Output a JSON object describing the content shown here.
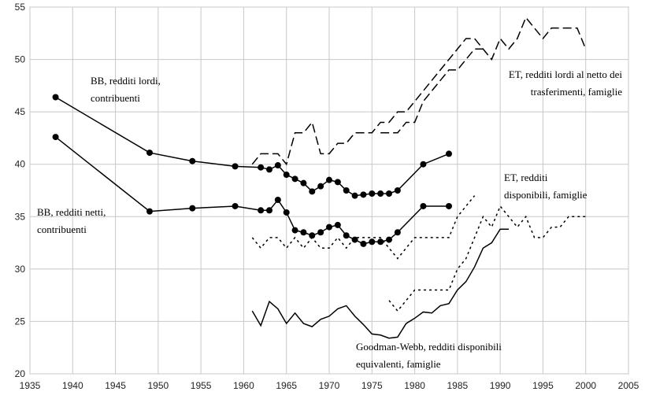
{
  "chart_data": {
    "type": "line",
    "xlim": [
      1935,
      2005
    ],
    "xticks": [
      1935,
      1940,
      1945,
      1950,
      1955,
      1960,
      1965,
      1970,
      1975,
      1980,
      1985,
      1990,
      1995,
      2000,
      2005
    ],
    "ylim": [
      20,
      55
    ],
    "yticks": [
      20,
      25,
      30,
      35,
      40,
      45,
      50,
      55
    ],
    "grid": true,
    "series": [
      {
        "name": [
          "BB, redditi lordi,",
          "contribuenti"
        ],
        "color": "#000000",
        "dash": "solid",
        "markers": true,
        "x": [
          1938,
          1949,
          1954,
          1959,
          1962,
          1963,
          1964,
          1965,
          1966,
          1967,
          1968,
          1969,
          1970,
          1971,
          1972,
          1973,
          1974,
          1975,
          1976,
          1977,
          1978,
          1981,
          1984
        ],
        "values": [
          46.4,
          41.1,
          40.3,
          39.8,
          39.7,
          39.5,
          39.9,
          39.0,
          38.6,
          38.2,
          37.4,
          37.9,
          38.5,
          38.3,
          37.5,
          37.0,
          37.1,
          37.2,
          37.2,
          37.2,
          37.5,
          40.0,
          41.0
        ]
      },
      {
        "name": [
          "BB, redditi netti,",
          "contribuenti"
        ],
        "color": "#000000",
        "dash": "solid",
        "markers": true,
        "x": [
          1938,
          1949,
          1954,
          1959,
          1962,
          1963,
          1964,
          1965,
          1966,
          1967,
          1968,
          1969,
          1970,
          1971,
          1972,
          1973,
          1974,
          1975,
          1976,
          1977,
          1978,
          1981,
          1984
        ],
        "values": [
          42.6,
          35.5,
          35.8,
          36.0,
          35.6,
          35.6,
          36.6,
          35.4,
          33.7,
          33.5,
          33.2,
          33.5,
          34.0,
          34.2,
          33.2,
          32.8,
          32.4,
          32.6,
          32.6,
          32.8,
          33.5,
          36.0,
          36.0
        ]
      },
      {
        "name": [
          "ET, redditi lordi al netto dei",
          "trasferimenti, famiglie"
        ],
        "color": "#000000",
        "dash": "dashed",
        "markers": false,
        "x": [
          1961,
          1962,
          1963,
          1964,
          1965,
          1966,
          1967,
          1968,
          1969,
          1970,
          1971,
          1972,
          1973,
          1974,
          1975,
          1976,
          1977,
          1978,
          1979,
          1980,
          1981,
          1982,
          1983,
          1984,
          1985,
          1986,
          1987,
          1988,
          1989,
          1990,
          1991,
          1992,
          1993,
          1994,
          1995,
          1996,
          1997,
          1998,
          1999,
          2000
        ],
        "values": [
          40,
          41,
          41,
          41,
          40,
          43,
          43,
          44,
          41,
          41,
          42,
          42,
          43,
          43,
          43,
          44,
          44,
          45,
          45,
          46,
          47,
          48,
          49,
          50,
          51,
          52,
          52,
          51,
          50,
          52,
          51,
          52,
          54,
          53,
          52,
          53,
          53,
          53,
          53,
          51
        ]
      },
      {
        "color": "#000000",
        "dash": "dashed",
        "markers": false,
        "x": [
          1976,
          1977,
          1978,
          1979,
          1980,
          1981,
          1982,
          1983,
          1984,
          1985,
          1986,
          1987,
          1988
        ],
        "values": [
          43,
          43,
          43,
          44,
          44,
          46,
          47,
          48,
          49,
          49,
          50,
          51,
          51
        ]
      },
      {
        "name": [
          "ET, redditi",
          "disponibili, famiglie"
        ],
        "color": "#000000",
        "dash": "dotted",
        "markers": false,
        "x": [
          1961,
          1962,
          1963,
          1964,
          1965,
          1966,
          1967,
          1968,
          1969,
          1970,
          1971,
          1972,
          1973,
          1974,
          1975,
          1976,
          1977,
          1978,
          1979,
          1980,
          1981,
          1982,
          1983,
          1984,
          1985,
          1986,
          1987
        ],
        "values": [
          33,
          32,
          33,
          33,
          32,
          33,
          32,
          33,
          32,
          32,
          33,
          32,
          33,
          33,
          33,
          33,
          32,
          31,
          32,
          33,
          33,
          33,
          33,
          33,
          35,
          36,
          37
        ]
      },
      {
        "color": "#000000",
        "dash": "dotted",
        "markers": false,
        "x": [
          1977,
          1978,
          1979,
          1980,
          1981,
          1982,
          1983,
          1984,
          1985,
          1986,
          1987,
          1988,
          1989,
          1990,
          1991,
          1992,
          1993,
          1994,
          1995,
          1996,
          1997,
          1998,
          1999,
          2000
        ],
        "values": [
          27,
          26,
          27,
          28,
          28,
          28,
          28,
          28,
          30,
          31,
          33,
          35,
          34,
          36,
          35,
          34,
          35,
          33,
          33,
          34,
          34,
          35,
          35,
          35
        ]
      },
      {
        "name": [
          "Goodman-Webb, redditi disponibili",
          "equivalenti, famiglie"
        ],
        "color": "#000000",
        "dash": "solid",
        "markers": false,
        "x": [
          1961,
          1962,
          1963,
          1964,
          1965,
          1966,
          1967,
          1968,
          1969,
          1970,
          1971,
          1972,
          1973,
          1974,
          1975,
          1976,
          1977,
          1978,
          1979,
          1980,
          1981,
          1982,
          1983,
          1984,
          1985,
          1986,
          1987,
          1988,
          1989,
          1990,
          1991
        ],
        "values": [
          26,
          24.6,
          26.9,
          26.2,
          24.8,
          25.8,
          24.8,
          24.5,
          25.2,
          25.5,
          26.2,
          26.5,
          25.5,
          24.7,
          23.8,
          23.7,
          23.4,
          23.5,
          24.8,
          25.3,
          25.9,
          25.8,
          26.5,
          26.7,
          28.0,
          28.8,
          30.2,
          32.0,
          32.5,
          33.8,
          33.8
        ]
      }
    ]
  }
}
